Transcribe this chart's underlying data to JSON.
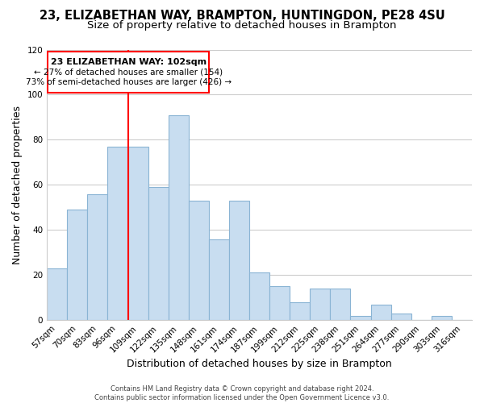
{
  "title": "23, ELIZABETHAN WAY, BRAMPTON, HUNTINGDON, PE28 4SU",
  "subtitle": "Size of property relative to detached houses in Brampton",
  "xlabel": "Distribution of detached houses by size in Brampton",
  "ylabel": "Number of detached properties",
  "footer_line1": "Contains HM Land Registry data © Crown copyright and database right 2024.",
  "footer_line2": "Contains public sector information licensed under the Open Government Licence v3.0.",
  "bar_labels": [
    "57sqm",
    "70sqm",
    "83sqm",
    "96sqm",
    "109sqm",
    "122sqm",
    "135sqm",
    "148sqm",
    "161sqm",
    "174sqm",
    "187sqm",
    "199sqm",
    "212sqm",
    "225sqm",
    "238sqm",
    "251sqm",
    "264sqm",
    "277sqm",
    "290sqm",
    "303sqm",
    "316sqm"
  ],
  "bar_values": [
    23,
    49,
    56,
    77,
    77,
    59,
    91,
    53,
    36,
    53,
    21,
    15,
    8,
    14,
    14,
    2,
    7,
    3,
    0,
    2,
    0
  ],
  "bar_color": "#c8ddf0",
  "bar_edge_color": "#8ab4d4",
  "grid_color": "#cccccc",
  "background_color": "#ffffff",
  "ylim": [
    0,
    120
  ],
  "yticks": [
    0,
    20,
    40,
    60,
    80,
    100,
    120
  ],
  "property_label": "23 ELIZABETHAN WAY: 102sqm",
  "annotation_smaller": "← 27% of detached houses are smaller (154)",
  "annotation_larger": "73% of semi-detached houses are larger (426) →",
  "vline_x_index": 3.5,
  "title_fontsize": 10.5,
  "subtitle_fontsize": 9.5,
  "axis_label_fontsize": 9,
  "tick_fontsize": 7.5,
  "annotation_fontsize": 8,
  "footer_fontsize": 6
}
